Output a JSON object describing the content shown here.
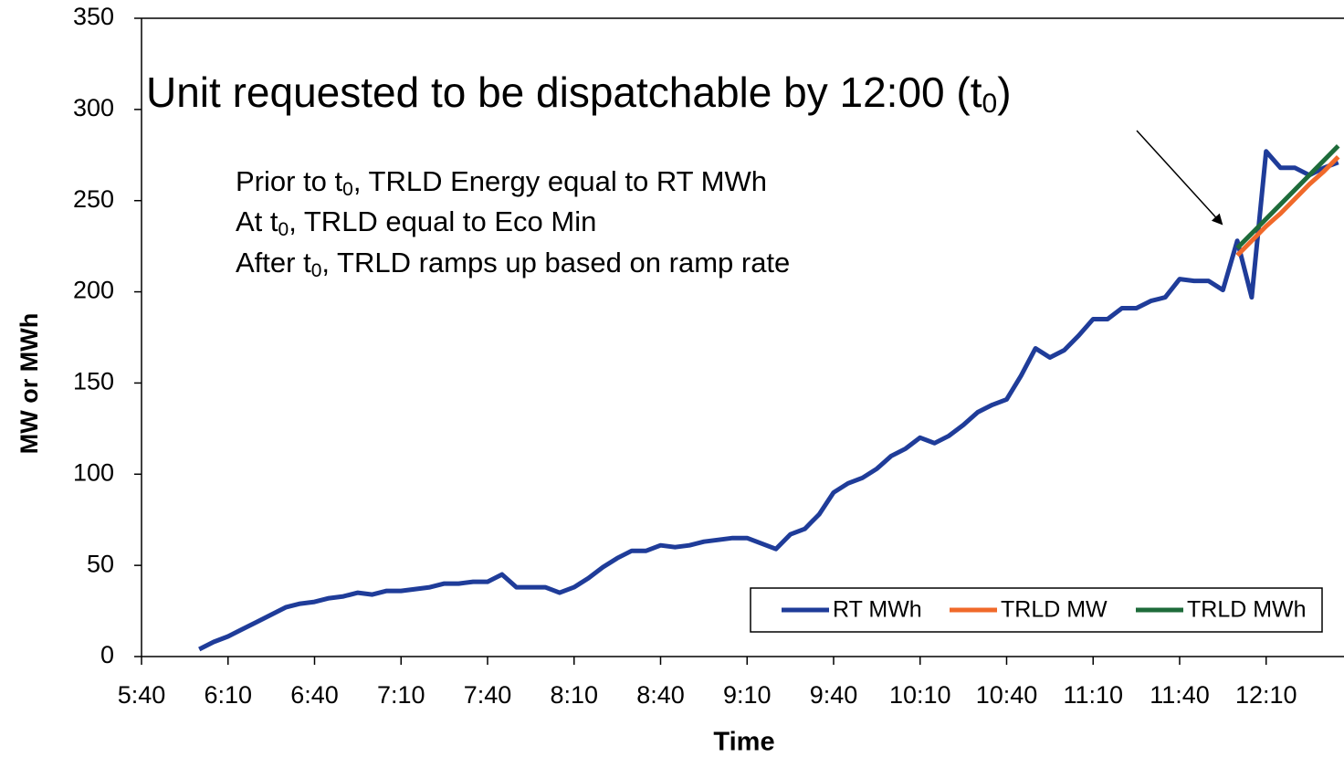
{
  "chart_data": {
    "type": "line",
    "annotations": [
      {
        "parts": [
          "Unit requested to be dispatchable by 12:00 (t",
          "0",
          ")"
        ]
      },
      {
        "parts": [
          "Prior to t",
          "0",
          ", TRLD Energy equal to RT MWh"
        ]
      },
      {
        "parts": [
          "At t",
          "0",
          ", TRLD equal to Eco Min"
        ]
      },
      {
        "parts": [
          "After t",
          "0",
          ", TRLD ramps up based on ramp rate"
        ]
      }
    ],
    "x_label": "Time",
    "y_label": "MW or MWh",
    "x": [
      "6:00",
      "6:05",
      "6:10",
      "6:15",
      "6:20",
      "6:25",
      "6:30",
      "6:35",
      "6:40",
      "6:45",
      "6:50",
      "6:55",
      "7:00",
      "7:05",
      "7:10",
      "7:15",
      "7:20",
      "7:25",
      "7:30",
      "7:35",
      "7:40",
      "7:45",
      "7:50",
      "7:55",
      "8:00",
      "8:05",
      "8:10",
      "8:15",
      "8:20",
      "8:25",
      "8:30",
      "8:35",
      "8:40",
      "8:45",
      "8:50",
      "8:55",
      "9:00",
      "9:05",
      "9:10",
      "9:15",
      "9:20",
      "9:25",
      "9:30",
      "9:35",
      "9:40",
      "9:45",
      "9:50",
      "9:55",
      "10:00",
      "10:05",
      "10:10",
      "10:15",
      "10:20",
      "10:25",
      "10:30",
      "10:35",
      "10:40",
      "10:45",
      "10:50",
      "10:55",
      "11:00",
      "11:05",
      "11:10",
      "11:15",
      "11:20",
      "11:25",
      "11:30",
      "11:35",
      "11:40",
      "11:45",
      "11:50",
      "11:55",
      "12:00",
      "12:05",
      "12:10",
      "12:15",
      "12:20",
      "12:25",
      "12:30",
      "12:35"
    ],
    "series": [
      {
        "name": "RT MWh",
        "color": "#1f3c99",
        "values": [
          4,
          8,
          11,
          15,
          19,
          23,
          27,
          29,
          30,
          32,
          33,
          35,
          34,
          36,
          36,
          37,
          38,
          40,
          40,
          41,
          41,
          45,
          38,
          38,
          38,
          35,
          38,
          43,
          49,
          54,
          58,
          58,
          61,
          60,
          61,
          63,
          64,
          65,
          65,
          62,
          59,
          67,
          70,
          78,
          90,
          95,
          98,
          103,
          110,
          114,
          120,
          117,
          121,
          127,
          134,
          138,
          141,
          154,
          169,
          164,
          168,
          176,
          185,
          185,
          191,
          191,
          195,
          197,
          207,
          206,
          206,
          201,
          228,
          197,
          277,
          268,
          268,
          264,
          268,
          271
        ]
      },
      {
        "name": "TRLD MW",
        "color": "#f0692a",
        "values": [
          null,
          null,
          null,
          null,
          null,
          null,
          null,
          null,
          null,
          null,
          null,
          null,
          null,
          null,
          null,
          null,
          null,
          null,
          null,
          null,
          null,
          null,
          null,
          null,
          null,
          null,
          null,
          null,
          null,
          null,
          null,
          null,
          null,
          null,
          null,
          null,
          null,
          null,
          null,
          null,
          null,
          null,
          null,
          null,
          null,
          null,
          null,
          null,
          null,
          null,
          null,
          null,
          null,
          null,
          null,
          null,
          null,
          null,
          null,
          null,
          null,
          null,
          null,
          null,
          null,
          null,
          null,
          null,
          null,
          null,
          null,
          null,
          220,
          228,
          236,
          243,
          251,
          259,
          266,
          274
        ]
      },
      {
        "name": "TRLD MWh",
        "color": "#1e6b3a",
        "values": [
          null,
          null,
          null,
          null,
          null,
          null,
          null,
          null,
          null,
          null,
          null,
          null,
          null,
          null,
          null,
          null,
          null,
          null,
          null,
          null,
          null,
          null,
          null,
          null,
          null,
          null,
          null,
          null,
          null,
          null,
          null,
          null,
          null,
          null,
          null,
          null,
          null,
          null,
          null,
          null,
          null,
          null,
          null,
          null,
          null,
          null,
          null,
          null,
          null,
          null,
          null,
          null,
          null,
          null,
          null,
          null,
          null,
          null,
          null,
          null,
          null,
          null,
          null,
          null,
          null,
          null,
          null,
          null,
          null,
          null,
          null,
          null,
          224,
          232,
          240,
          248,
          256,
          264,
          272,
          280
        ]
      }
    ],
    "xlim": [
      "5:40",
      "12:37"
    ],
    "xticks": [
      "5:40",
      "6:10",
      "6:40",
      "7:10",
      "7:40",
      "8:10",
      "8:40",
      "9:10",
      "9:40",
      "10:10",
      "10:40",
      "11:10",
      "11:40",
      "12:10"
    ],
    "ylim": [
      0,
      350
    ],
    "yticks": [
      0,
      50,
      100,
      150,
      200,
      250,
      300,
      350
    ],
    "legend": "bottom-right"
  }
}
